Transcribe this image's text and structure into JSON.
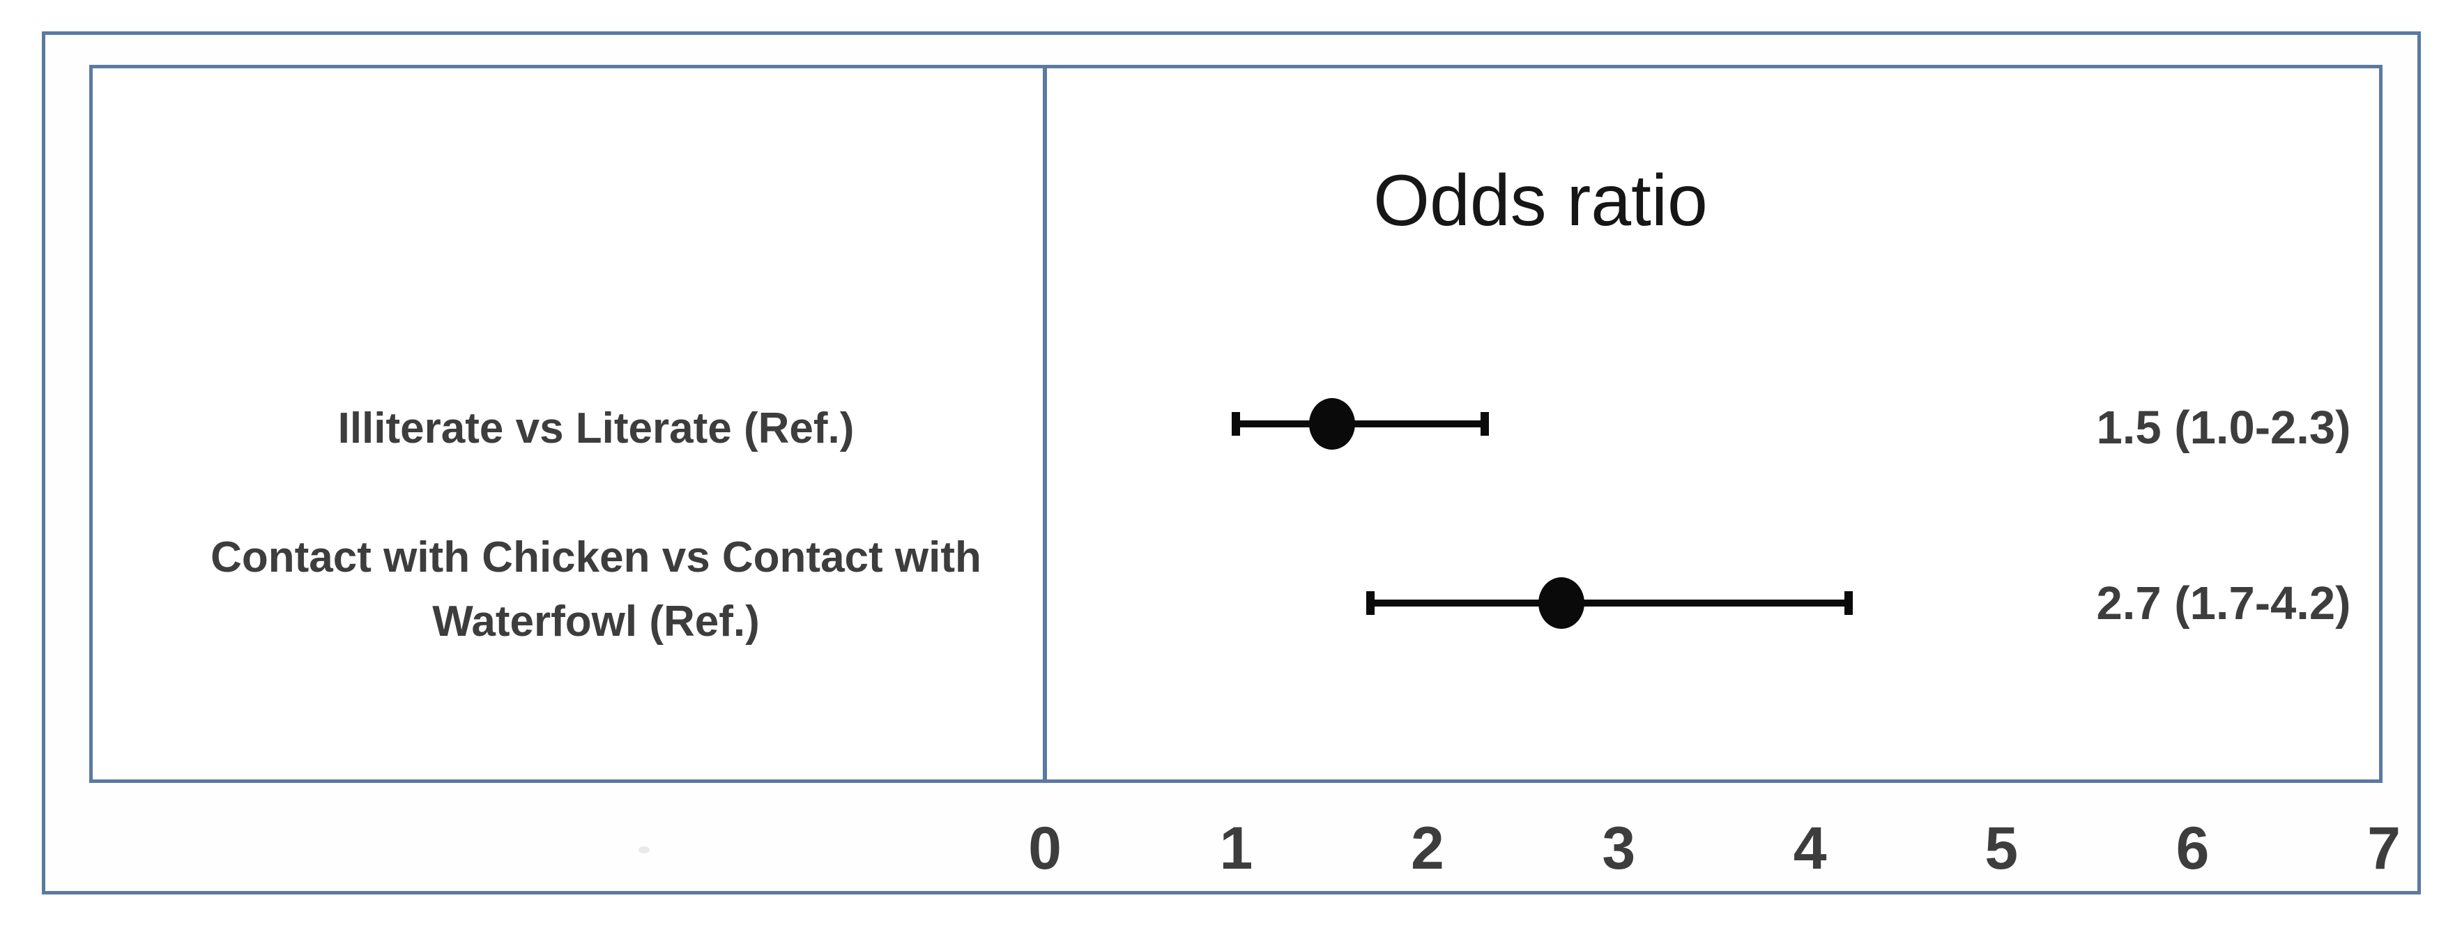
{
  "title": "Odds ratio",
  "rows": [
    {
      "label": "Illiterate vs Literate (Ref.)",
      "value_text": "1.5 (1.0-2.3)"
    },
    {
      "label": "Contact with Chicken vs Contact with Waterfowl (Ref.)",
      "value_text": "2.7 (1.7-4.2)"
    }
  ],
  "axis_ticks": [
    "0",
    "1",
    "2",
    "3",
    "4",
    "5",
    "6",
    "7"
  ],
  "colors": {
    "frame": "#5b7aa0",
    "label_text": "#3d3d3d",
    "title_text": "#161616",
    "marker": "#0a0a0a"
  },
  "chart_data": {
    "type": "scatter",
    "subtype": "forest-plot",
    "title": "Odds ratio",
    "categories": [
      "Illiterate vs Literate (Ref.)",
      "Contact with Chicken vs Contact with Waterfowl (Ref.)"
    ],
    "series": [
      {
        "name": "Odds ratio (95% CI)",
        "values": [
          1.5,
          2.7
        ],
        "ci_low": [
          1.0,
          1.7
        ],
        "ci_high": [
          2.3,
          4.2
        ]
      }
    ],
    "annotations": [
      "1.5 (1.0-2.3)",
      "2.7 (1.7-4.2)"
    ],
    "xlabel": "",
    "ylabel": "",
    "xlim": [
      0,
      7
    ],
    "x_ticks": [
      0,
      1,
      2,
      3,
      4,
      5,
      6,
      7
    ],
    "grid": false,
    "legend": false,
    "marker_style": "filled-circle",
    "error_bar_caps": true
  }
}
